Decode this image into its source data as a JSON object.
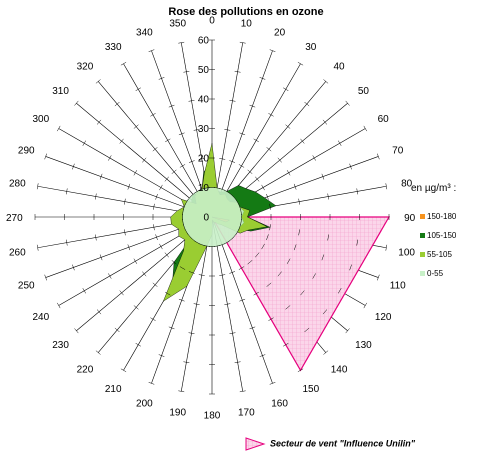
{
  "chart_data": {
    "type": "radar",
    "title": "Rose des pollutions en ozone",
    "angles_deg": [
      0,
      10,
      20,
      30,
      40,
      50,
      60,
      70,
      80,
      90,
      100,
      110,
      120,
      130,
      140,
      150,
      160,
      170,
      180,
      190,
      200,
      210,
      220,
      230,
      240,
      250,
      260,
      270,
      280,
      290,
      300,
      310,
      320,
      330,
      340,
      350
    ],
    "radial_ticks": [
      0,
      10,
      20,
      30,
      40,
      50,
      60
    ],
    "rmax": 60,
    "series": [
      {
        "name": "150-180",
        "color": "#f7931e",
        "values": [
          0,
          0,
          0,
          0,
          0,
          0,
          0,
          0,
          0,
          0,
          6,
          5,
          0,
          0,
          0,
          0,
          0,
          0,
          0,
          0,
          0,
          0,
          0,
          0,
          0,
          0,
          0,
          0,
          0,
          0,
          0,
          0,
          0,
          0,
          0,
          0
        ]
      },
      {
        "name": "105-150",
        "color": "#147a14",
        "values": [
          12,
          9,
          9,
          10,
          14,
          15,
          17,
          19,
          22,
          12,
          20,
          14,
          7,
          4,
          2,
          2,
          2,
          1,
          5,
          8,
          22,
          27,
          20,
          7,
          8,
          6,
          9,
          13,
          6,
          7,
          8,
          9,
          10,
          9,
          10,
          16
        ]
      },
      {
        "name": "55-105",
        "color": "#9acd32",
        "values": [
          25,
          10,
          8,
          9,
          8,
          8,
          10,
          10,
          13,
          12,
          19,
          13,
          11,
          4,
          3,
          2,
          2,
          1,
          6,
          10,
          25,
          33,
          15,
          12,
          13,
          12,
          14,
          14,
          12,
          10,
          12,
          7,
          9,
          10,
          10,
          15
        ]
      },
      {
        "name": "0-55",
        "color": "#c8f0c8",
        "values": [
          10,
          10,
          10,
          10,
          10,
          10,
          10,
          10,
          11,
          10,
          11,
          10,
          10,
          10,
          10,
          10,
          10,
          10,
          10,
          10,
          10,
          10,
          10,
          10,
          10,
          10,
          10,
          10,
          10,
          10,
          10,
          10,
          10,
          10,
          10,
          10
        ]
      }
    ],
    "sector": {
      "label": "Secteur de vent \"Influence Unilin\"",
      "from_deg": 90,
      "to_deg": 150,
      "radius": 60,
      "color": "#e6007e"
    },
    "legend": {
      "title": "en µg/m³ :",
      "placement": "right"
    }
  }
}
